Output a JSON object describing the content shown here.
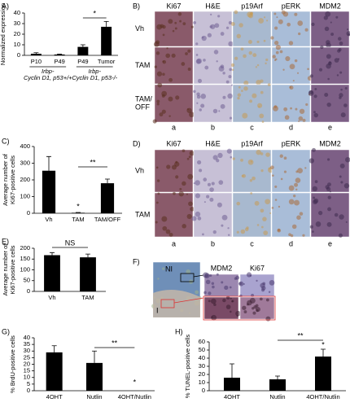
{
  "chart_data": [
    {
      "type": "bar",
      "panel": "A)",
      "ylabel": [
        "Normalized expression"
      ],
      "categories": [
        "P10",
        "P49",
        "P49",
        "Tumor"
      ],
      "values": [
        1.5,
        0.8,
        8,
        27
      ],
      "errors": [
        1,
        0.3,
        2,
        5
      ],
      "group_labels": [
        [
          "Irbp-",
          "Cyclin D1, p53+/+"
        ],
        [
          "Irbp-",
          "Cyclin D1, p53-/-"
        ]
      ],
      "ylim": [
        0,
        40
      ],
      "yticks": [
        0,
        10,
        20,
        30,
        40
      ],
      "color": "#000000",
      "annotations": [
        "*"
      ]
    },
    {
      "type": "bar",
      "panel": "C)",
      "ylabel": [
        "Average number of",
        "Ki67-positive cells"
      ],
      "categories": [
        "Vh",
        "TAM",
        "TAM/OFF"
      ],
      "values": [
        255,
        3,
        180
      ],
      "errors": [
        85,
        2,
        25
      ],
      "ylim": [
        0,
        400
      ],
      "yticks": [
        0,
        100,
        200,
        300,
        400
      ],
      "color": "#000000",
      "annotations": [
        "*",
        "**"
      ]
    },
    {
      "type": "bar",
      "panel": "E)",
      "ylabel": [
        "Average number of",
        "Ki67-positive cells"
      ],
      "categories": [
        "Vh",
        "TAM"
      ],
      "values": [
        168,
        158
      ],
      "errors": [
        12,
        15
      ],
      "ylim": [
        0,
        200
      ],
      "yticks": [
        0,
        50,
        100,
        150,
        200
      ],
      "color": "#000000",
      "annotations": [
        "NS"
      ]
    },
    {
      "type": "bar",
      "panel": "G)",
      "ylabel": [
        "% BrdU-positive cells"
      ],
      "categories": [
        "4OHT",
        "Nutlin",
        "4OHT/Nutlin"
      ],
      "values": [
        29,
        21,
        0
      ],
      "errors": [
        5,
        9,
        0
      ],
      "ylim": [
        0,
        40
      ],
      "yticks": [
        0,
        5,
        10,
        15,
        20,
        25,
        30,
        35,
        40
      ],
      "color": "#000000",
      "annotations": [
        "**",
        "*"
      ]
    },
    {
      "type": "bar",
      "panel": "H)",
      "ylabel": [
        "% TUNEL-positive cells"
      ],
      "categories": [
        "4OHT",
        "Nutlin",
        "4OHT/Nutlin"
      ],
      "values": [
        16,
        14,
        42
      ],
      "errors": [
        17,
        4,
        9
      ],
      "ylim": [
        0,
        60
      ],
      "yticks": [
        0,
        10,
        20,
        30,
        40,
        50,
        60
      ],
      "color": "#000000",
      "annotations": [
        "**",
        "*"
      ]
    }
  ],
  "panels": [
    {
      "label": "B)",
      "columns": [
        "Ki67",
        "H&E",
        "p19Arf",
        "pERK",
        "MDM2"
      ],
      "rows": [
        [
          "Vh"
        ],
        [
          "TAM"
        ],
        [
          "TAM/",
          "OFF"
        ]
      ],
      "letters": [
        "a",
        "b",
        "c",
        "d",
        "e"
      ]
    },
    {
      "label": "D)",
      "columns": [
        "Ki67",
        "H&E",
        "p19Arf",
        "pERK",
        "MDM2"
      ],
      "rows": [
        [
          "Vh"
        ],
        [
          "TAM"
        ]
      ],
      "letters": [
        "a",
        "b",
        "c",
        "d",
        "e"
      ]
    },
    {
      "label": "F)",
      "columns": [
        "MDM2",
        "Ki67"
      ],
      "regions": [
        "NI",
        "I"
      ]
    }
  ]
}
